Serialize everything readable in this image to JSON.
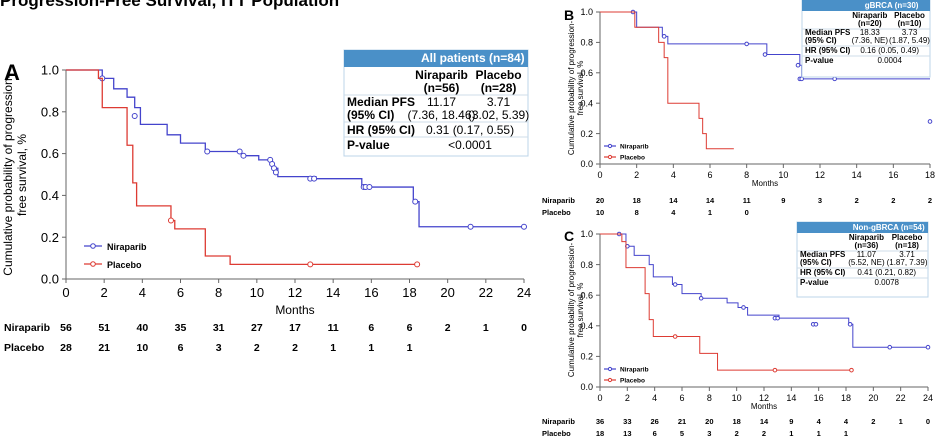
{
  "top_caption": "Progression-Free Survival, ITT Population",
  "colors": {
    "niraparib": "#4444cc",
    "placebo": "#dd3b33",
    "header": "#4a90c8",
    "axis": "#666666",
    "grid": "#e0e0e0"
  },
  "chart_data": [
    {
      "id": "A",
      "panel_label": "A",
      "type": "line",
      "ylabel": "Cumulative probability of progression-free survival, %",
      "xlabel": "Months",
      "xlim": [
        0,
        24
      ],
      "ylim": [
        0,
        1.0
      ],
      "xticks": [
        0,
        2,
        4,
        6,
        8,
        10,
        12,
        14,
        16,
        18,
        20,
        22,
        24
      ],
      "yticks": [
        0.0,
        0.2,
        0.4,
        0.6,
        0.8,
        1.0
      ],
      "ytick_labels": [
        "0.0",
        "0.2",
        "0.4",
        "0.6",
        "0.8",
        "1.0"
      ],
      "legend": [
        "Niraparib",
        "Placebo"
      ],
      "series": [
        {
          "name": "Niraparib",
          "x": [
            0,
            1.5,
            1.9,
            2.5,
            3.2,
            3.6,
            3.9,
            5.3,
            6.0,
            7.3,
            7.8,
            9.2,
            10.1,
            10.8,
            11.1,
            13.1,
            15.5,
            17.2,
            18.2,
            18.5,
            24
          ],
          "y": [
            1.0,
            1.0,
            0.96,
            0.91,
            0.87,
            0.82,
            0.74,
            0.69,
            0.65,
            0.61,
            0.61,
            0.59,
            0.57,
            0.53,
            0.49,
            0.48,
            0.44,
            0.44,
            0.37,
            0.25,
            0.25
          ],
          "censored_x": [
            1.9,
            3.6,
            7.4,
            9.1,
            9.3,
            10.7,
            10.8,
            10.9,
            11.0,
            12.8,
            13.0,
            15.6,
            15.7,
            15.9,
            18.3,
            21.2,
            24.0
          ],
          "censored_y": [
            0.96,
            0.78,
            0.61,
            0.61,
            0.59,
            0.57,
            0.55,
            0.53,
            0.51,
            0.48,
            0.48,
            0.44,
            0.44,
            0.44,
            0.37,
            0.25,
            0.25
          ]
        },
        {
          "name": "Placebo",
          "x": [
            0,
            1.7,
            1.9,
            3.2,
            3.5,
            3.7,
            3.9,
            5.5,
            5.7,
            7.3,
            8.6,
            18.5
          ],
          "y": [
            1.0,
            0.96,
            0.82,
            0.64,
            0.46,
            0.35,
            0.35,
            0.28,
            0.24,
            0.11,
            0.07,
            0.07
          ],
          "censored_x": [
            5.5,
            12.8,
            18.4
          ],
          "censored_y": [
            0.28,
            0.07,
            0.07
          ]
        }
      ],
      "table": {
        "header": "All patients (n=84)",
        "col1": "Niraparib",
        "col1_n": "(n=56)",
        "col2": "Placebo",
        "col2_n": "(n=28)",
        "median_label": "Median PFS",
        "median_label2": "(95% CI)",
        "median_nir": "11.17",
        "median_nir_ci": "(7.36, 18.46)",
        "median_pla": "3.71",
        "median_pla_ci": "(3.02, 5.39)",
        "hr_label": "HR (95% CI)",
        "hr_value": "0.31 (0.17, 0.55)",
        "p_label": "P-value",
        "p_value": "<0.0001"
      },
      "at_risk": {
        "labels": [
          "Niraparib",
          "Placebo"
        ],
        "niraparib": [
          "56",
          "51",
          "40",
          "35",
          "31",
          "27",
          "17",
          "11",
          "6",
          "6",
          "2",
          "1",
          "0"
        ],
        "placebo": [
          "28",
          "21",
          "10",
          "6",
          "3",
          "2",
          "2",
          "1",
          "1",
          "1"
        ]
      }
    },
    {
      "id": "B",
      "panel_label": "B",
      "type": "line",
      "ylabel": "Cumulative probability of progression-free survival, %",
      "xlabel": "Months",
      "xlim": [
        0,
        18
      ],
      "ylim": [
        0,
        1.0
      ],
      "xticks": [
        0,
        2,
        4,
        6,
        8,
        10,
        12,
        14,
        16,
        18
      ],
      "yticks": [
        0.0,
        0.2,
        0.4,
        0.6,
        0.8,
        1.0
      ],
      "ytick_labels": [
        "0.0",
        "0.2",
        "0.4",
        "0.6",
        "0.8",
        "1.0"
      ],
      "legend": [
        "Niraparib",
        "Placebo"
      ],
      "series": [
        {
          "name": "Niraparib",
          "x": [
            0,
            1.8,
            2.0,
            3.4,
            3.7,
            8.9,
            9.1,
            10.9,
            11.0,
            18
          ],
          "y": [
            1.0,
            1.0,
            0.9,
            0.84,
            0.79,
            0.79,
            0.72,
            0.65,
            0.56,
            0.56
          ],
          "censored_x": [
            1.8,
            3.5,
            8.0,
            9.0,
            10.8,
            10.9,
            11.0,
            12.8,
            18.0
          ],
          "censored_y": [
            1.0,
            0.84,
            0.79,
            0.72,
            0.65,
            0.56,
            0.56,
            0.56,
            0.28
          ]
        },
        {
          "name": "Placebo",
          "x": [
            0,
            1.7,
            1.9,
            3.2,
            3.5,
            3.7,
            5.2,
            5.4,
            5.6,
            5.8,
            7.3
          ],
          "y": [
            1.0,
            1.0,
            0.9,
            0.8,
            0.7,
            0.4,
            0.4,
            0.3,
            0.2,
            0.1,
            0.1
          ],
          "censored_x": [],
          "censored_y": []
        }
      ],
      "table": {
        "header": "gBRCA (n=30)",
        "col1": "Niraparib",
        "col1_n": "(n=20)",
        "col2": "Placebo",
        "col2_n": "(n=10)",
        "median_label": "Median PFS",
        "median_label2": "(95% CI)",
        "median_nir": "18.33",
        "median_nir_ci": "(7.36, NE)",
        "median_pla": "3.73",
        "median_pla_ci": "(1.87, 5.49)",
        "hr_label": "HR (95% CI)",
        "hr_value": "0.16 (0.05, 0.49)",
        "p_label": "P-value",
        "p_value": "0.0004"
      },
      "at_risk": {
        "labels": [
          "Niraparib",
          "Placebo"
        ],
        "niraparib": [
          "20",
          "18",
          "14",
          "14",
          "11",
          "9",
          "3",
          "2",
          "2",
          "2"
        ],
        "placebo": [
          "10",
          "8",
          "4",
          "1",
          "0"
        ]
      }
    },
    {
      "id": "C",
      "panel_label": "C",
      "type": "line",
      "ylabel": "Cumulative probability of progression-free survival, %",
      "xlabel": "Months",
      "xlim": [
        0,
        24
      ],
      "ylim": [
        0,
        1.0
      ],
      "xticks": [
        0,
        2,
        4,
        6,
        8,
        10,
        12,
        14,
        16,
        18,
        20,
        22,
        24
      ],
      "yticks": [
        0.0,
        0.2,
        0.4,
        0.6,
        0.8,
        1.0
      ],
      "ytick_labels": [
        "0.0",
        "0.2",
        "0.4",
        "0.6",
        "0.8",
        "1.0"
      ],
      "legend": [
        "Niraparib",
        "Placebo"
      ],
      "series": [
        {
          "name": "Niraparib",
          "x": [
            0,
            1.4,
            1.9,
            2.5,
            3.6,
            3.9,
            5.3,
            6.0,
            7.4,
            9.3,
            10.1,
            10.8,
            13.1,
            18.2,
            18.5,
            24
          ],
          "y": [
            1.0,
            1.0,
            0.92,
            0.86,
            0.8,
            0.72,
            0.67,
            0.61,
            0.58,
            0.55,
            0.52,
            0.47,
            0.45,
            0.41,
            0.26,
            0.26
          ],
          "censored_x": [
            1.4,
            2.0,
            5.5,
            7.4,
            10.5,
            12.8,
            13.0,
            15.6,
            15.8,
            18.3,
            21.2,
            24.0
          ],
          "censored_y": [
            1.0,
            0.92,
            0.67,
            0.58,
            0.52,
            0.45,
            0.45,
            0.41,
            0.41,
            0.41,
            0.26,
            0.26
          ]
        },
        {
          "name": "Placebo",
          "x": [
            0,
            1.6,
            1.9,
            3.3,
            3.6,
            3.9,
            5.6,
            7.3,
            8.6,
            18.5
          ],
          "y": [
            1.0,
            0.95,
            0.78,
            0.61,
            0.44,
            0.33,
            0.33,
            0.22,
            0.11,
            0.11
          ],
          "censored_x": [
            5.5,
            12.8,
            18.4
          ],
          "censored_y": [
            0.33,
            0.11,
            0.11
          ]
        }
      ],
      "table": {
        "header": "Non-gBRCA (n=54)",
        "col1": "Niraparib",
        "col1_n": "(n=36)",
        "col2": "Placebo",
        "col2_n": "(n=18)",
        "median_label": "Median PFS",
        "median_label2": "(95% CI)",
        "median_nir": "11.07",
        "median_nir_ci": "(5.52, NE)",
        "median_pla": "3.71",
        "median_pla_ci": "(1.87, 7.39)",
        "hr_label": "HR (95% CI)",
        "hr_value": "0.41 (0.21, 0.82)",
        "p_label": "P-value",
        "p_value": "0.0078"
      },
      "at_risk": {
        "labels": [
          "Niraparib",
          "Placebo"
        ],
        "niraparib": [
          "36",
          "33",
          "26",
          "21",
          "20",
          "18",
          "14",
          "9",
          "4",
          "4",
          "2",
          "1",
          "0"
        ],
        "placebo": [
          "18",
          "13",
          "6",
          "5",
          "3",
          "2",
          "2",
          "1",
          "1",
          "1"
        ]
      }
    }
  ]
}
